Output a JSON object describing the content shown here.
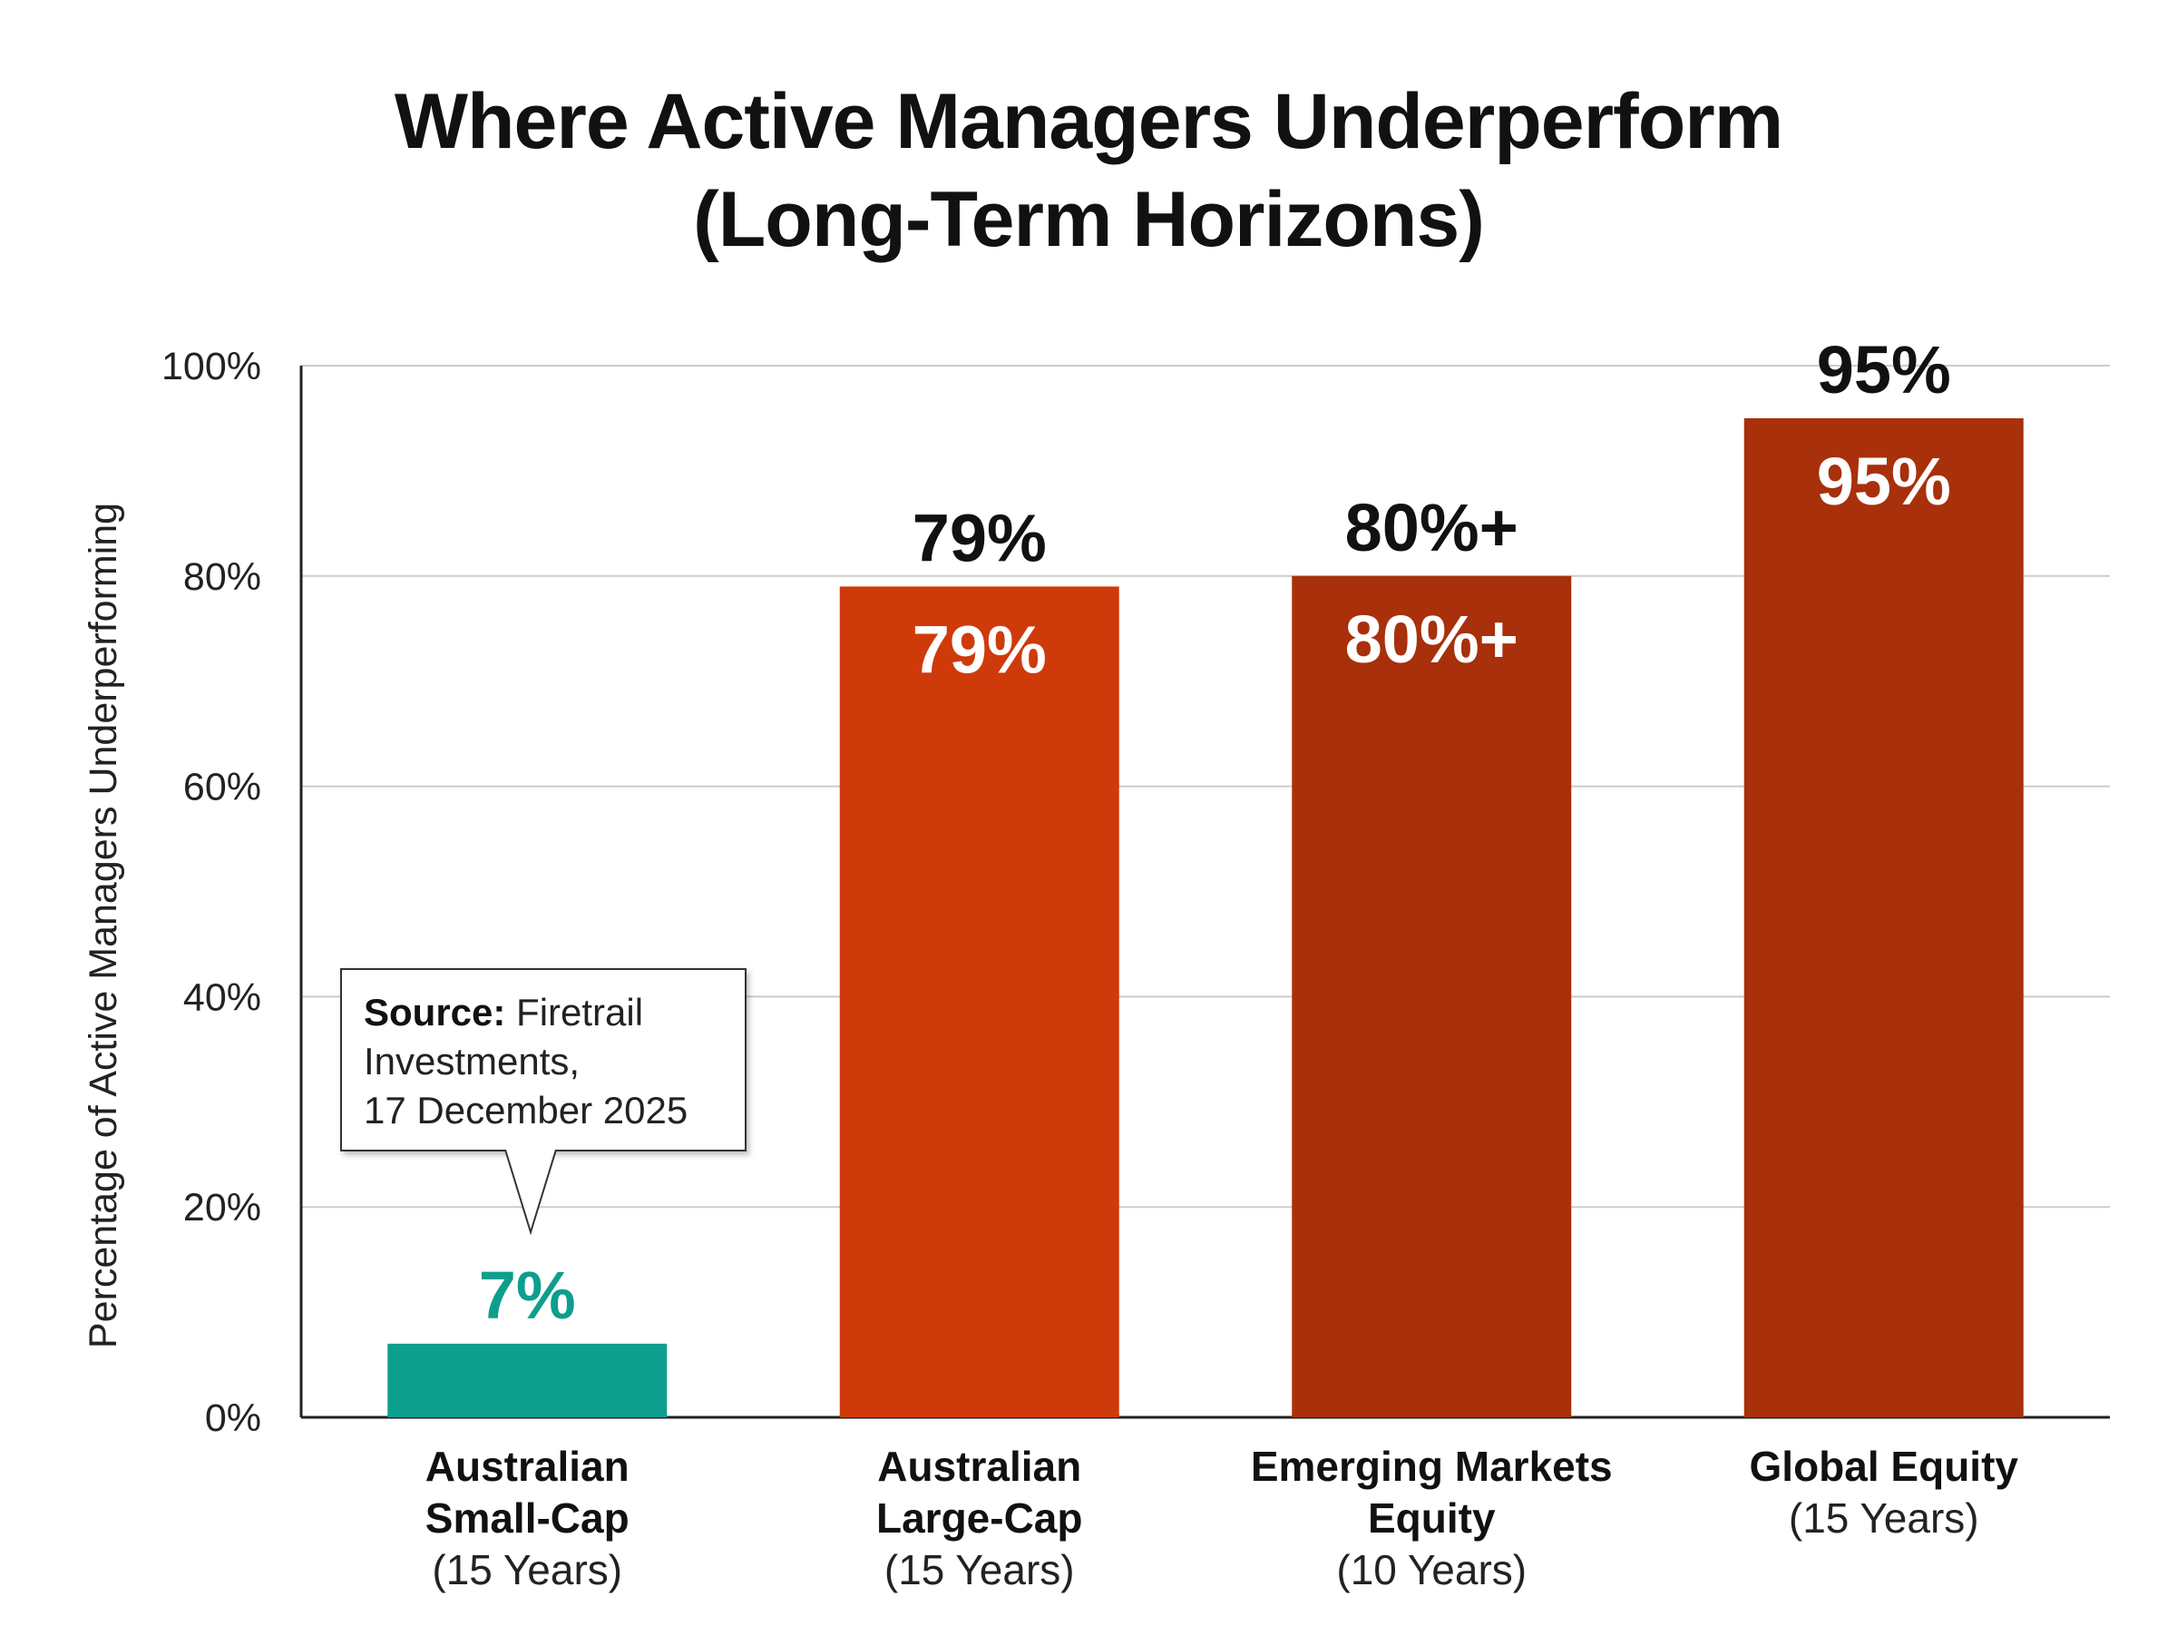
{
  "chart_data": {
    "type": "bar",
    "title_lines": [
      "Where Active Managers Underperform",
      "(Long-Term Horizons)"
    ],
    "ylabel": "Percentage of Active Managers Underperforming",
    "xlabel": "",
    "ylim": [
      0,
      100
    ],
    "yticks": [
      0,
      20,
      40,
      60,
      80,
      100
    ],
    "ytick_suffix": "%",
    "grid": true,
    "categories": [
      {
        "name_lines": [
          "Australian",
          "Small-Cap"
        ],
        "period": "(15 Years)"
      },
      {
        "name_lines": [
          "Australian",
          "Large-Cap"
        ],
        "period": "(15 Years)"
      },
      {
        "name_lines": [
          "Emerging Markets",
          "Equity"
        ],
        "period": "(10 Years)"
      },
      {
        "name_lines": [
          "Global Equity"
        ],
        "period": "(15 Years)"
      }
    ],
    "values": [
      7,
      79,
      80,
      95
    ],
    "data_labels": [
      "7%",
      "79%",
      "80%+",
      "95%"
    ],
    "bar_colors": [
      "#0e9e8e",
      "#cf3a0a",
      "#a8300a",
      "#a8300a"
    ],
    "label_colors": {
      "highlight": "#0e9e8e",
      "outside": "#111111",
      "inside": "#ffffff"
    },
    "annotation": {
      "bold": "Source:",
      "text_lines": [
        "Firetrail",
        "Investments,",
        "17 December 2025"
      ]
    }
  }
}
